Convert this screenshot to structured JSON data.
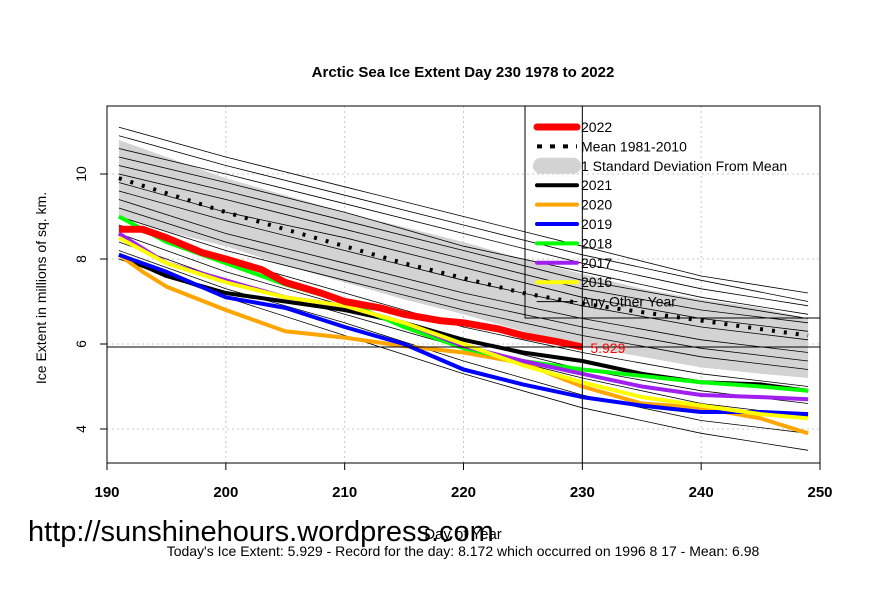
{
  "chart_data": {
    "type": "line",
    "title": "Arctic Sea Ice Extent Day 230 1978 to 2022",
    "xlabel": "Day of Year",
    "ylabel": "Ice Extent in millions of sq. km.",
    "xlim": [
      190,
      250
    ],
    "ylim": [
      3.2,
      11.6
    ],
    "xticks": [
      190,
      200,
      210,
      220,
      230,
      240,
      250
    ],
    "yticks": [
      4,
      6,
      8,
      10
    ],
    "grid": true,
    "legend_position": "top-right",
    "marker_day": 230,
    "annotation": "5.929",
    "watermark": "http://sunshinehours.wordpress.com",
    "footer": "Today's Ice Extent: 5.929  - Record for the day: 8.172 which occurred on 1996 8 17  - Mean: 6.98",
    "colors": {
      "y2022": "#ff0000",
      "mean": "#000000",
      "band": "#d3d3d3",
      "y2021": "#000000",
      "y2020": "#ffa500",
      "y2019": "#0000ff",
      "y2018": "#00ff00",
      "y2017": "#a020f0",
      "y2016": "#ffff00",
      "other": "#000000",
      "annotation": "#ff0000"
    },
    "std_band": {
      "x": [
        191,
        195,
        200,
        205,
        210,
        215,
        220,
        225,
        230,
        235,
        240,
        245,
        249
      ],
      "upper": [
        10.8,
        10.4,
        9.9,
        9.5,
        9.1,
        8.75,
        8.4,
        8.0,
        7.65,
        7.3,
        7.05,
        6.85,
        6.6
      ],
      "lower": [
        9.0,
        8.65,
        8.3,
        7.85,
        7.45,
        7.05,
        6.7,
        6.3,
        5.95,
        5.7,
        5.45,
        5.3,
        5.2
      ]
    },
    "other_years": [
      {
        "x": [
          191,
          200,
          210,
          220,
          230,
          240,
          249
        ],
        "values": [
          11.1,
          10.4,
          9.7,
          9.0,
          8.3,
          7.6,
          7.2
        ]
      },
      {
        "x": [
          191,
          200,
          210,
          220,
          230,
          240,
          249
        ],
        "values": [
          10.9,
          10.2,
          9.5,
          8.8,
          8.1,
          7.5,
          7.0
        ]
      },
      {
        "x": [
          191,
          200,
          210,
          220,
          230,
          240,
          249
        ],
        "values": [
          10.6,
          10.0,
          9.3,
          8.6,
          7.9,
          7.3,
          6.9
        ]
      },
      {
        "x": [
          191,
          200,
          210,
          220,
          230,
          240,
          249
        ],
        "values": [
          10.4,
          9.8,
          9.1,
          8.3,
          7.7,
          7.1,
          6.7
        ]
      },
      {
        "x": [
          191,
          200,
          210,
          220,
          230,
          240,
          249
        ],
        "values": [
          10.2,
          9.6,
          8.9,
          8.2,
          7.5,
          7.0,
          6.6
        ]
      },
      {
        "x": [
          191,
          200,
          210,
          220,
          230,
          240,
          249
        ],
        "values": [
          10.0,
          9.4,
          8.7,
          8.0,
          7.3,
          6.8,
          6.5
        ]
      },
      {
        "x": [
          191,
          200,
          210,
          220,
          230,
          240,
          249
        ],
        "values": [
          9.8,
          9.1,
          8.5,
          7.8,
          7.1,
          6.6,
          6.3
        ]
      },
      {
        "x": [
          191,
          200,
          210,
          220,
          230,
          240,
          249
        ],
        "values": [
          9.6,
          8.9,
          8.2,
          7.5,
          6.9,
          6.4,
          6.1
        ]
      },
      {
        "x": [
          191,
          200,
          210,
          220,
          230,
          240,
          249
        ],
        "values": [
          9.4,
          8.6,
          7.9,
          7.2,
          6.6,
          6.1,
          5.8
        ]
      },
      {
        "x": [
          191,
          200,
          210,
          220,
          230,
          240,
          249
        ],
        "values": [
          9.2,
          8.4,
          7.7,
          7.0,
          6.4,
          5.9,
          5.6
        ]
      },
      {
        "x": [
          191,
          200,
          210,
          220,
          230,
          240,
          249
        ],
        "values": [
          9.0,
          8.2,
          7.5,
          6.8,
          6.2,
          5.7,
          5.4
        ]
      },
      {
        "x": [
          191,
          200,
          210,
          220,
          230,
          240,
          249
        ],
        "values": [
          8.8,
          8.0,
          7.2,
          6.4,
          5.8,
          5.3,
          5.0
        ]
      },
      {
        "x": [
          191,
          200,
          210,
          220,
          230,
          240,
          249
        ],
        "values": [
          8.6,
          7.7,
          6.9,
          6.1,
          5.4,
          4.9,
          4.6
        ]
      },
      {
        "x": [
          191,
          200,
          210,
          220,
          230,
          240,
          249
        ],
        "values": [
          8.4,
          7.5,
          6.7,
          5.9,
          5.2,
          4.6,
          4.3
        ]
      },
      {
        "x": [
          191,
          200,
          210,
          220,
          230,
          240,
          249
        ],
        "values": [
          8.2,
          7.3,
          6.5,
          5.6,
          4.8,
          4.2,
          3.9
        ]
      },
      {
        "x": [
          191,
          200,
          210,
          220,
          230,
          240,
          249
        ],
        "values": [
          8.0,
          7.1,
          6.2,
          5.3,
          4.5,
          3.9,
          3.5
        ]
      }
    ],
    "series": [
      {
        "name": "Mean 1981-2010",
        "key": "mean",
        "x": [
          191,
          195,
          200,
          205,
          210,
          215,
          220,
          225,
          230,
          235,
          240,
          245,
          249
        ],
        "values": [
          9.9,
          9.55,
          9.1,
          8.7,
          8.3,
          7.9,
          7.55,
          7.2,
          6.95,
          6.75,
          6.55,
          6.35,
          6.2
        ]
      },
      {
        "name": "2021",
        "key": "y2021",
        "x": [
          191,
          195,
          200,
          205,
          210,
          215,
          220,
          225,
          230,
          235,
          240,
          245,
          249
        ],
        "values": [
          8.1,
          7.6,
          7.2,
          7.0,
          6.8,
          6.5,
          6.1,
          5.8,
          5.6,
          5.3,
          5.1,
          5.05,
          4.9
        ]
      },
      {
        "name": "2020",
        "key": "y2020",
        "x": [
          191,
          193,
          195,
          200,
          205,
          210,
          215,
          220,
          225,
          230,
          235,
          240,
          245,
          249
        ],
        "values": [
          8.1,
          7.7,
          7.35,
          6.8,
          6.3,
          6.15,
          5.95,
          5.8,
          5.55,
          5.0,
          4.6,
          4.5,
          4.25,
          3.9
        ]
      },
      {
        "name": "2019",
        "key": "y2019",
        "x": [
          191,
          195,
          200,
          205,
          210,
          215,
          220,
          225,
          230,
          235,
          240,
          245,
          249
        ],
        "values": [
          8.1,
          7.7,
          7.1,
          6.85,
          6.4,
          6.0,
          5.4,
          5.05,
          4.75,
          4.55,
          4.4,
          4.4,
          4.35
        ]
      },
      {
        "name": "2018",
        "key": "y2018",
        "x": [
          191,
          195,
          200,
          205,
          210,
          215,
          220,
          225,
          230,
          235,
          240,
          245,
          249
        ],
        "values": [
          9.0,
          8.4,
          7.9,
          7.4,
          7.0,
          6.4,
          5.9,
          5.6,
          5.4,
          5.25,
          5.1,
          5.0,
          4.9
        ]
      },
      {
        "name": "2017",
        "key": "y2017",
        "x": [
          191,
          195,
          200,
          205,
          210,
          215,
          220,
          225,
          230,
          235,
          240,
          245,
          249
        ],
        "values": [
          8.6,
          7.9,
          7.5,
          7.1,
          6.9,
          6.5,
          5.95,
          5.6,
          5.3,
          5.0,
          4.8,
          4.75,
          4.7
        ]
      },
      {
        "name": "2016",
        "key": "y2016",
        "x": [
          191,
          195,
          200,
          205,
          210,
          215,
          220,
          225,
          230,
          235,
          240,
          245,
          249
        ],
        "values": [
          8.5,
          7.9,
          7.45,
          7.1,
          6.9,
          6.5,
          6.0,
          5.5,
          5.1,
          4.75,
          4.55,
          4.35,
          4.25
        ]
      },
      {
        "name": "2022",
        "key": "y2022",
        "x": [
          191,
          193,
          195,
          198,
          200,
          203,
          205,
          208,
          210,
          213,
          215,
          218,
          220,
          223,
          225,
          228,
          230
        ],
        "values": [
          8.7,
          8.7,
          8.5,
          8.15,
          8.0,
          7.75,
          7.45,
          7.2,
          7.0,
          6.85,
          6.7,
          6.55,
          6.5,
          6.35,
          6.2,
          6.05,
          5.929
        ]
      }
    ],
    "legend": [
      {
        "label": "2022",
        "key": "y2022",
        "style": "line",
        "width": 7
      },
      {
        "label": "Mean 1981-2010",
        "key": "mean",
        "style": "dashed",
        "width": 4
      },
      {
        "label": "1 Standard Deviation From Mean",
        "key": "band",
        "style": "band",
        "width": 16
      },
      {
        "label": "2021",
        "key": "y2021",
        "style": "line",
        "width": 4
      },
      {
        "label": "2020",
        "key": "y2020",
        "style": "line",
        "width": 4
      },
      {
        "label": "2019",
        "key": "y2019",
        "style": "line",
        "width": 4
      },
      {
        "label": "2018",
        "key": "y2018",
        "style": "line",
        "width": 4
      },
      {
        "label": "2017",
        "key": "y2017",
        "style": "line",
        "width": 4
      },
      {
        "label": "2016",
        "key": "y2016",
        "style": "line",
        "width": 4
      },
      {
        "label": "Any Other Year",
        "key": "other",
        "style": "line",
        "width": 1
      }
    ]
  }
}
